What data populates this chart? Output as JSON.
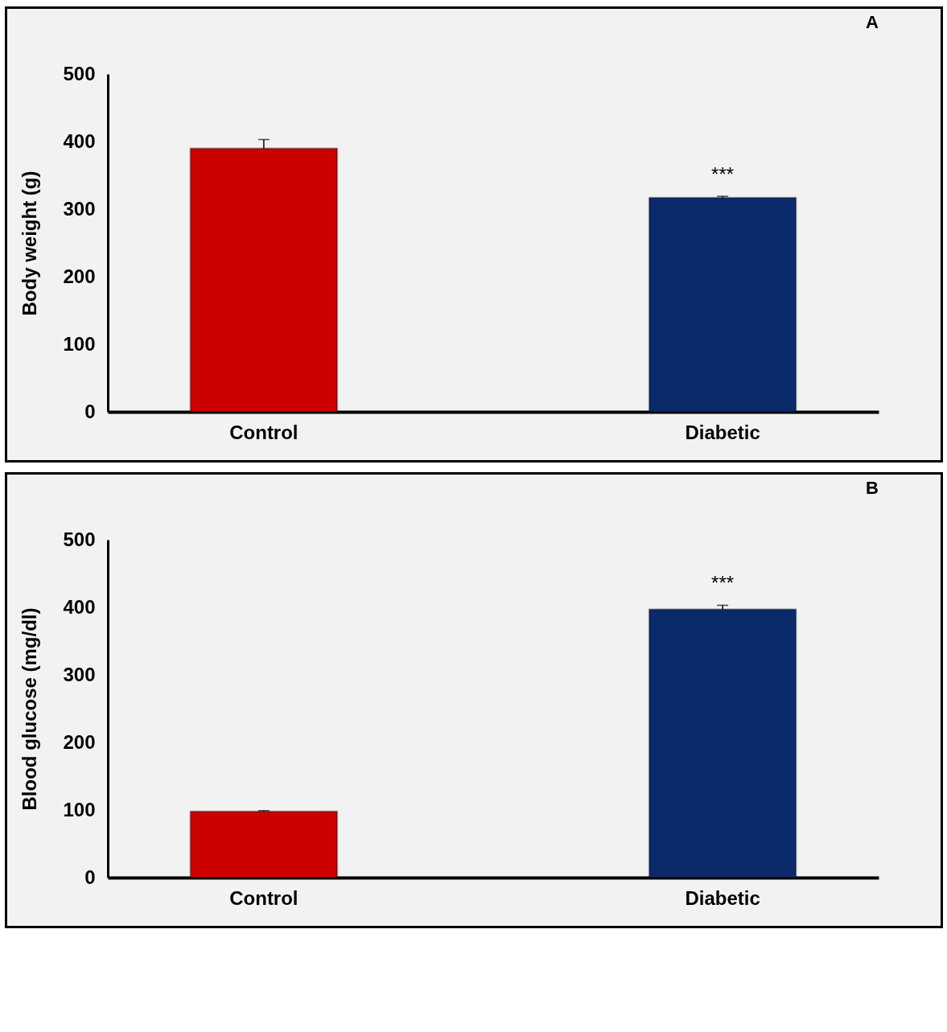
{
  "chart_data": [
    {
      "type": "bar",
      "title": "A",
      "ylabel": "Body weight (g)",
      "categories": [
        "Control",
        "Diabetic"
      ],
      "values": [
        390,
        317
      ],
      "errors": [
        13,
        2
      ],
      "colors": [
        "#cc0000",
        "#0b2a6b"
      ],
      "ylim": [
        0,
        500
      ],
      "yticks": [
        0,
        100,
        200,
        300,
        400,
        500
      ],
      "annotations": [
        {
          "text": "***",
          "x": "Diabetic",
          "y": 319
        }
      ]
    },
    {
      "type": "bar",
      "title": "B",
      "ylabel": "Blood glucose (mg/dl)",
      "categories": [
        "Control",
        "Diabetic"
      ],
      "values": [
        98,
        397
      ],
      "errors": [
        1,
        6
      ],
      "colors": [
        "#cc0000",
        "#0b2a6b"
      ],
      "ylim": [
        0,
        500
      ],
      "yticks": [
        0,
        100,
        200,
        300,
        400,
        500
      ],
      "annotations": [
        {
          "text": "***",
          "x": "Diabetic",
          "y": 403
        }
      ]
    }
  ]
}
